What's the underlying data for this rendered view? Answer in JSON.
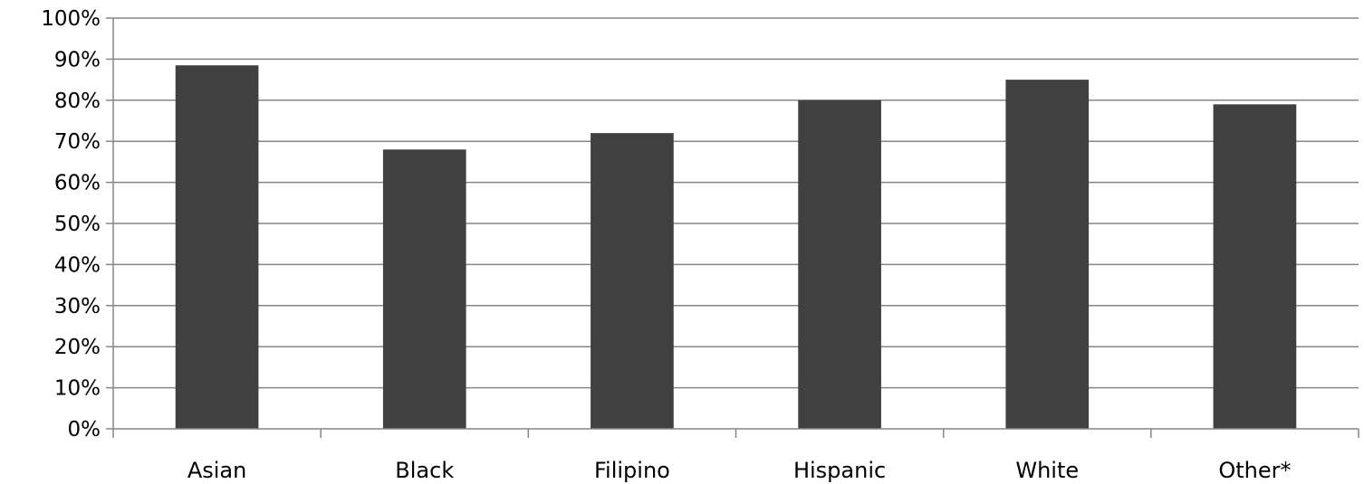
{
  "chart_data": {
    "type": "bar",
    "title": "",
    "xlabel": "",
    "ylabel": "",
    "categories": [
      "Asian",
      "Black",
      "Filipino",
      "Hispanic",
      "White",
      "Other*"
    ],
    "values": [
      88.5,
      68,
      72,
      80,
      85,
      79
    ],
    "ylim": [
      0,
      100
    ],
    "yticks": [
      0,
      10,
      20,
      30,
      40,
      50,
      60,
      70,
      80,
      90,
      100
    ],
    "ytick_labels": [
      "0%",
      "10%",
      "20%",
      "30%",
      "40%",
      "50%",
      "60%",
      "70%",
      "80%",
      "90%",
      "100%"
    ],
    "grid": true,
    "legend": "none",
    "colors": {
      "bar": "#404040",
      "grid": "#868686",
      "axis": "#868686",
      "text": "#000000"
    }
  }
}
